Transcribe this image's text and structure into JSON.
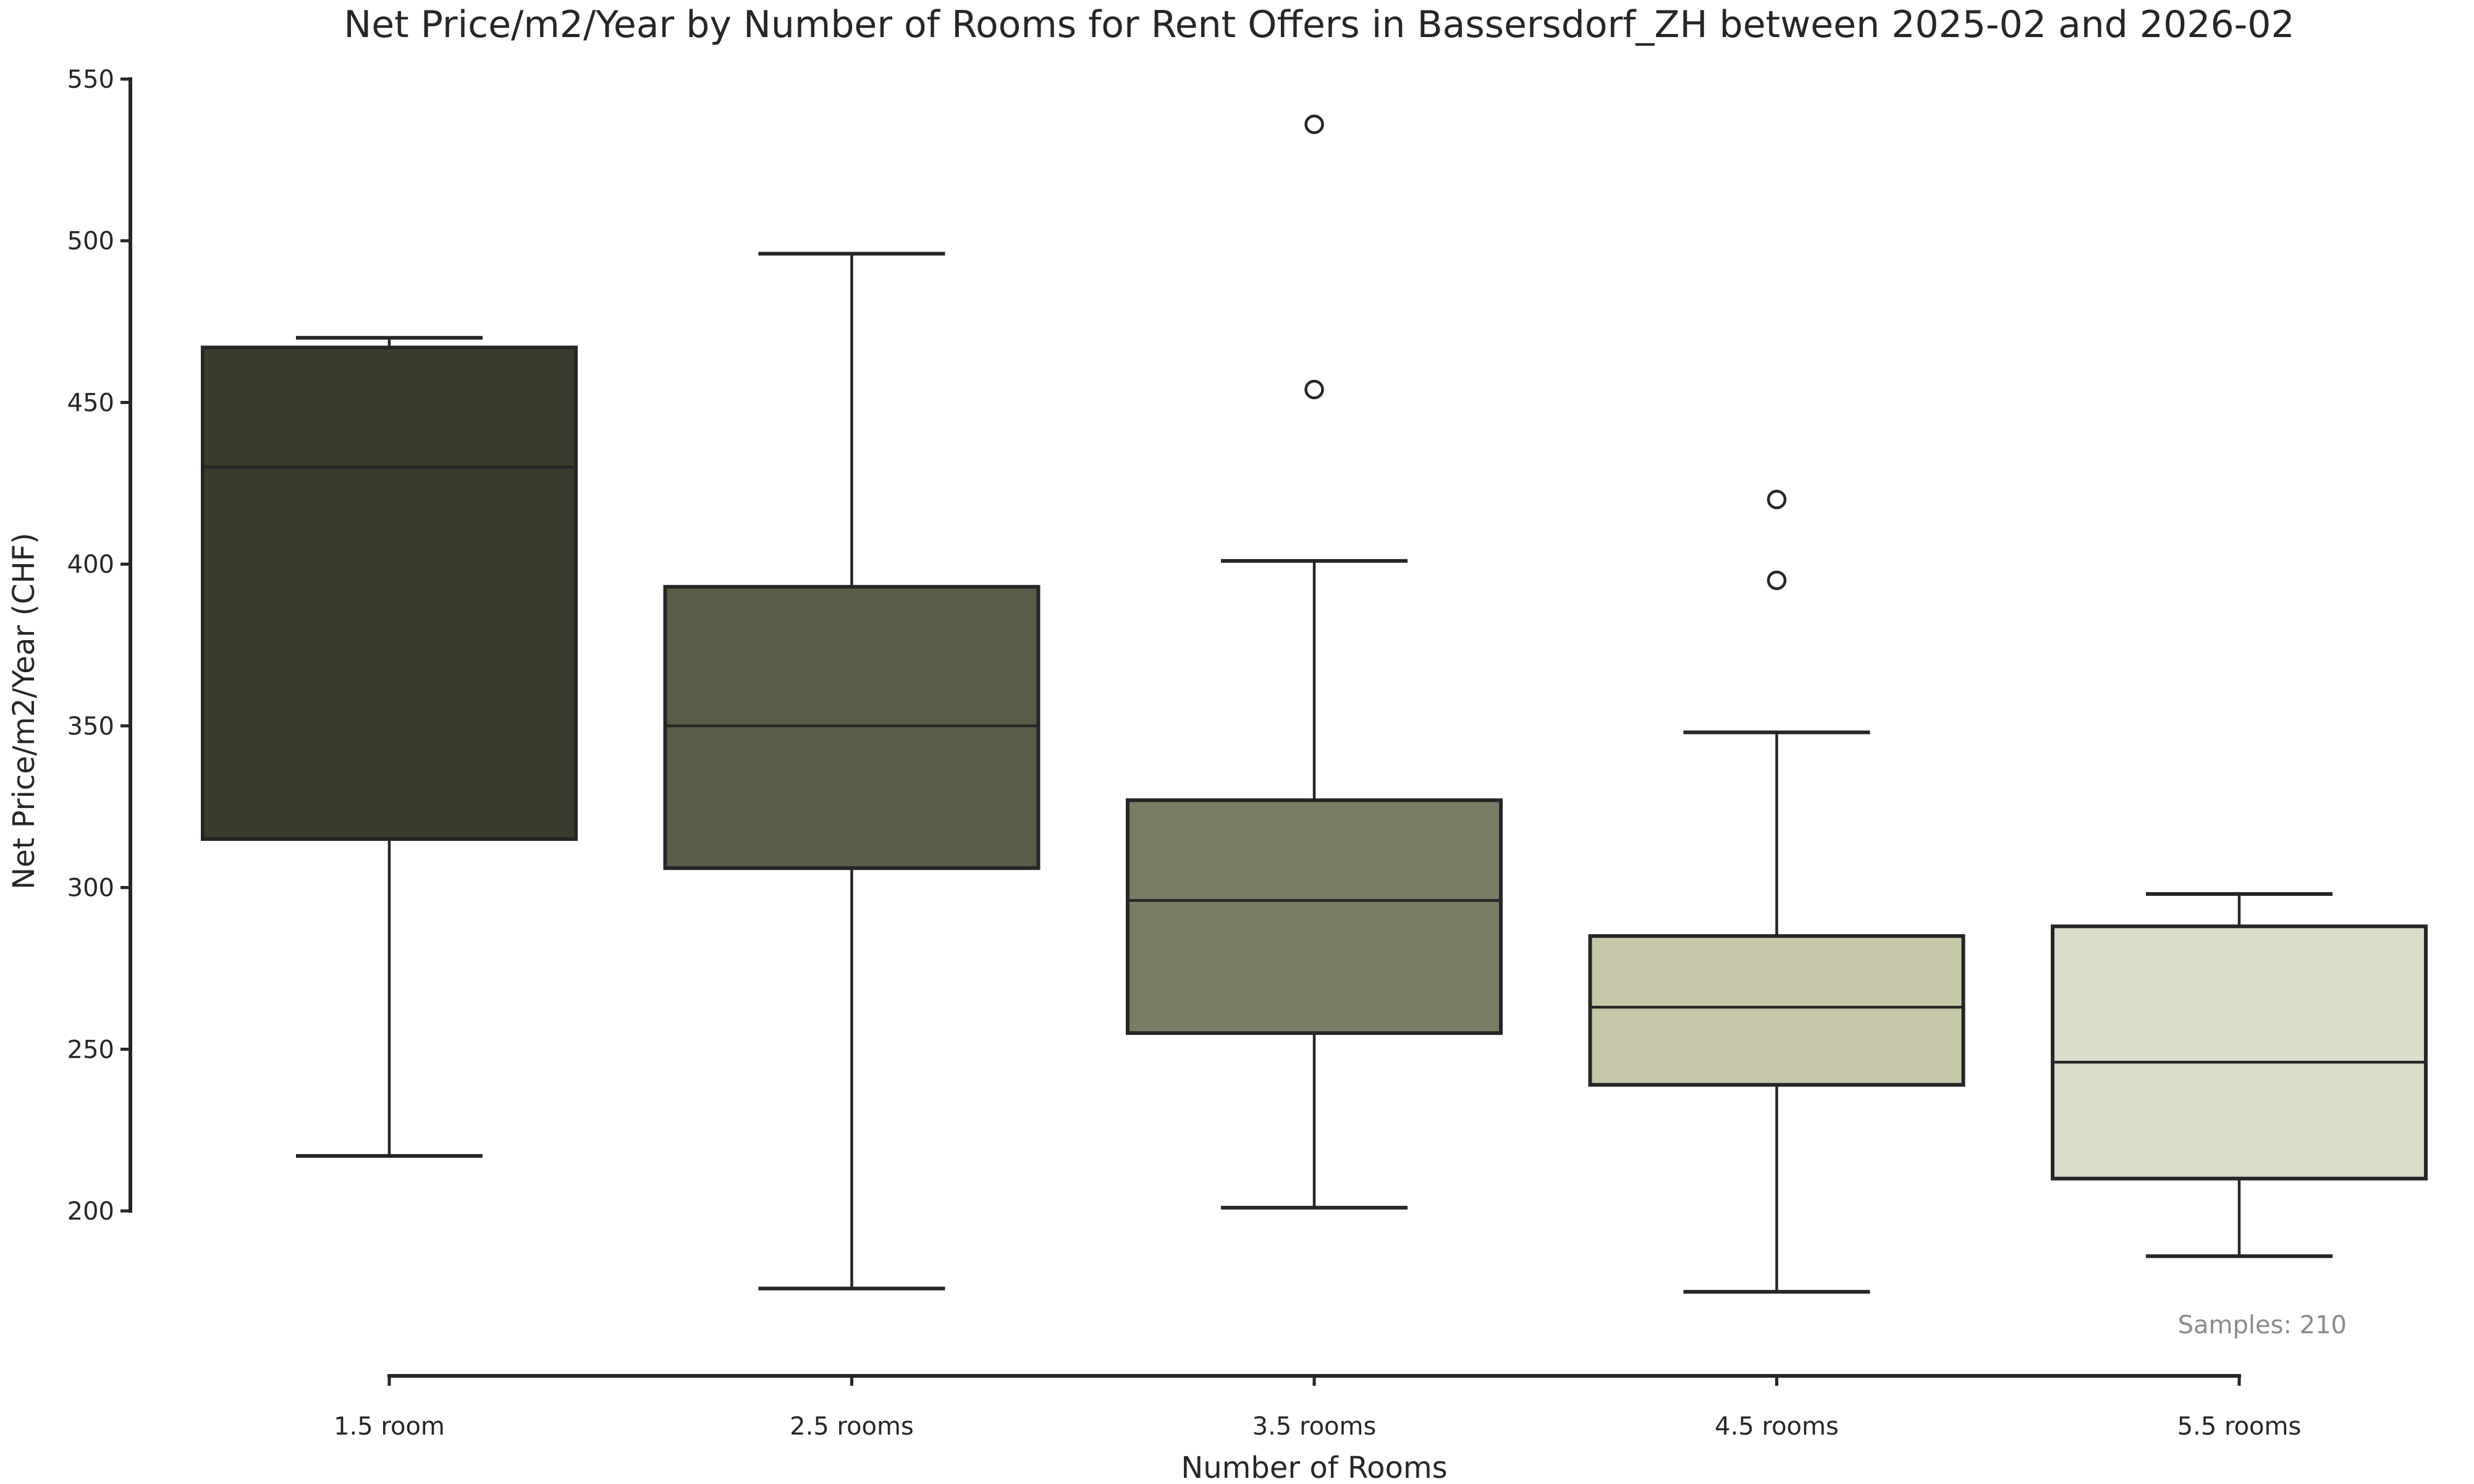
{
  "chart_data": {
    "type": "box",
    "title": "Net Price/m2/Year by Number of Rooms for Rent Offers in Bassersdorf_ZH between 2025-02 and 2026-02",
    "xlabel": "Number of Rooms",
    "ylabel": "Net Price/m2/Year (CHF)",
    "categories": [
      "1.5 room",
      "2.5 rooms",
      "3.5 rooms",
      "4.5 rooms",
      "5.5 rooms"
    ],
    "yticks": [
      550,
      500,
      450,
      400,
      350,
      300,
      250,
      200
    ],
    "ylim": [
      200,
      550
    ],
    "grid": false,
    "legend": "none",
    "annotation": {
      "text": "Samples: 210",
      "color": "#8a8a8a",
      "position": "bottom-right"
    },
    "sample_count": 210,
    "edge_color": "#262626",
    "background": "#ffffff",
    "series": [
      {
        "label": "1.5 room",
        "whisker_low": 217,
        "q1": 315,
        "median": 430,
        "q3": 467,
        "whisker_high": 470,
        "outliers": [],
        "color": "#3a3c2d"
      },
      {
        "label": "2.5 rooms",
        "whisker_low": 176,
        "q1": 306,
        "median": 350,
        "q3": 393,
        "whisker_high": 496,
        "outliers": [],
        "color": "#5a5c48"
      },
      {
        "label": "3.5 rooms",
        "whisker_low": 201,
        "q1": 255,
        "median": 296,
        "q3": 327,
        "whisker_high": 401,
        "outliers": [
          454,
          536
        ],
        "color": "#7a7c63"
      },
      {
        "label": "4.5 rooms",
        "whisker_low": 175,
        "q1": 239,
        "median": 263,
        "q3": 285,
        "whisker_high": 348,
        "outliers": [
          395,
          420
        ],
        "color": "#c6c7a6"
      },
      {
        "label": "5.5 rooms",
        "whisker_low": 186,
        "q1": 210,
        "median": 246,
        "q3": 288,
        "whisker_high": 298,
        "outliers": [],
        "color": "#dbdcc9"
      }
    ]
  }
}
